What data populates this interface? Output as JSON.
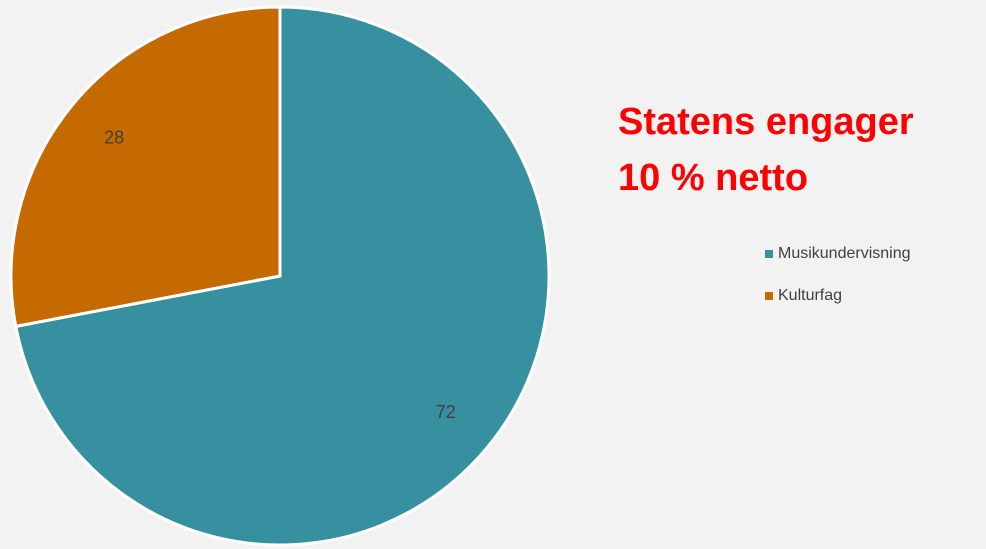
{
  "chart_data": {
    "type": "pie",
    "title_lines": [
      "Statens engager",
      "10 % netto"
    ],
    "categories": [
      "Musikundervisning",
      "Kulturfag"
    ],
    "values": [
      72,
      28
    ],
    "colors": [
      "#3790a0",
      "#c46a00"
    ]
  }
}
